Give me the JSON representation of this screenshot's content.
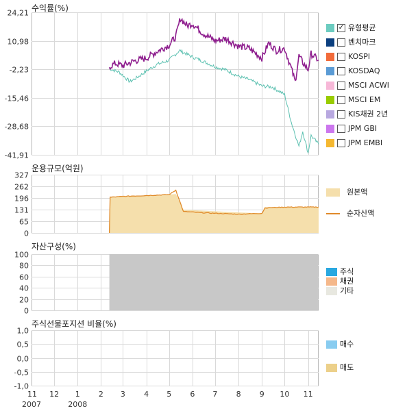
{
  "chart_data": [
    {
      "type": "line",
      "title": "수익률(%)",
      "yticks": [
        24.21,
        10.98,
        -2.23,
        -15.46,
        -28.68,
        -41.91
      ],
      "ytick_labels": [
        "24,21",
        "10,98",
        "-2,23",
        "-15,46",
        "-28,68",
        "-41,91"
      ],
      "ylim": [
        -41.91,
        24.21
      ],
      "x_start": "2007-11-01",
      "x_end": "2008-11-15",
      "series": [
        {
          "name": "유형평균",
          "color": "#8e1e8e",
          "points": [
            [
              "2008-02-12",
              -1.0
            ],
            [
              "2008-02-20",
              0.5
            ],
            [
              "2008-03-01",
              -0.5
            ],
            [
              "2008-03-15",
              1.5
            ],
            [
              "2008-04-01",
              3.0
            ],
            [
              "2008-04-15",
              6.0
            ],
            [
              "2008-05-01",
              9.0
            ],
            [
              "2008-05-10",
              13.0
            ],
            [
              "2008-05-16",
              21.5
            ],
            [
              "2008-05-25",
              18.0
            ],
            [
              "2008-06-01",
              19.0
            ],
            [
              "2008-06-15",
              14.5
            ],
            [
              "2008-07-01",
              11.0
            ],
            [
              "2008-07-15",
              12.0
            ],
            [
              "2008-08-01",
              8.5
            ],
            [
              "2008-08-15",
              7.5
            ],
            [
              "2008-09-01",
              3.0
            ],
            [
              "2008-09-10",
              10.0
            ],
            [
              "2008-09-20",
              6.5
            ],
            [
              "2008-10-01",
              7.5
            ],
            [
              "2008-10-10",
              -2.0
            ],
            [
              "2008-10-15",
              -8.0
            ],
            [
              "2008-10-20",
              4.0
            ],
            [
              "2008-10-25",
              1.0
            ],
            [
              "2008-11-01",
              -2.5
            ],
            [
              "2008-11-05",
              5.0
            ],
            [
              "2008-11-15",
              2.0
            ]
          ]
        },
        {
          "name": "벤치마크",
          "color": "#5bc0b0",
          "points": [
            [
              "2008-02-12",
              -2.0
            ],
            [
              "2008-02-25",
              -3.5
            ],
            [
              "2008-03-10",
              -8.0
            ],
            [
              "2008-03-20",
              -6.0
            ],
            [
              "2008-04-01",
              -3.0
            ],
            [
              "2008-04-15",
              0.0
            ],
            [
              "2008-05-01",
              2.0
            ],
            [
              "2008-05-15",
              6.5
            ],
            [
              "2008-06-01",
              3.5
            ],
            [
              "2008-06-15",
              1.5
            ],
            [
              "2008-07-01",
              -1.0
            ],
            [
              "2008-07-15",
              -2.5
            ],
            [
              "2008-08-01",
              -5.5
            ],
            [
              "2008-08-15",
              -7.0
            ],
            [
              "2008-09-01",
              -10.0
            ],
            [
              "2008-09-15",
              -10.5
            ],
            [
              "2008-10-01",
              -14.0
            ],
            [
              "2008-10-10",
              -27.0
            ],
            [
              "2008-10-20",
              -38.0
            ],
            [
              "2008-10-25",
              -31.0
            ],
            [
              "2008-11-01",
              -41.0
            ],
            [
              "2008-11-05",
              -33.0
            ],
            [
              "2008-11-15",
              -37.0
            ]
          ]
        }
      ]
    },
    {
      "type": "area",
      "title": "운용규모(억원)",
      "yticks": [
        327,
        262,
        196,
        131,
        65,
        0
      ],
      "ylim": [
        0,
        327
      ],
      "series": [
        {
          "name": "원본액",
          "type": "area",
          "color": "#f5dfac",
          "points": [
            [
              "2008-02-12",
              0
            ],
            [
              "2008-02-13",
              200
            ],
            [
              "2008-03-01",
              205
            ],
            [
              "2008-04-01",
              210
            ],
            [
              "2008-05-01",
              215
            ],
            [
              "2008-05-10",
              218
            ],
            [
              "2008-05-20",
              130
            ],
            [
              "2008-06-15",
              125
            ],
            [
              "2008-08-01",
              115
            ],
            [
              "2008-09-01",
              110
            ],
            [
              "2008-09-05",
              145
            ],
            [
              "2008-10-01",
              145
            ],
            [
              "2008-11-15",
              145
            ]
          ]
        },
        {
          "name": "순자산액",
          "type": "line",
          "color": "#e08a2a",
          "points": [
            [
              "2008-02-12",
              0
            ],
            [
              "2008-02-13",
              200
            ],
            [
              "2008-03-01",
              205
            ],
            [
              "2008-04-01",
              210
            ],
            [
              "2008-05-01",
              215
            ],
            [
              "2008-05-10",
              240
            ],
            [
              "2008-05-20",
              120
            ],
            [
              "2008-06-15",
              113
            ],
            [
              "2008-08-01",
              105
            ],
            [
              "2008-09-01",
              110
            ],
            [
              "2008-09-05",
              140
            ],
            [
              "2008-10-01",
              145
            ],
            [
              "2008-11-15",
              145
            ]
          ]
        }
      ]
    },
    {
      "type": "area",
      "title": "자산구성(%)",
      "yticks": [
        100,
        80,
        60,
        40,
        20,
        0
      ],
      "ylim": [
        0,
        100
      ],
      "series": [
        {
          "name": "주식",
          "color": "#29a8e0",
          "value": 0
        },
        {
          "name": "채권",
          "color": "#f5b88a",
          "value": 0
        },
        {
          "name": "기타",
          "color": "#c8c8c8",
          "value": 100,
          "from": "2008-02-12"
        }
      ]
    },
    {
      "type": "bar",
      "title": "주식선물포지션 비율(%)",
      "yticks": [
        1.0,
        0.5,
        0.0,
        -0.5,
        -1.0
      ],
      "ytick_labels": [
        "1,0",
        "0,5",
        "0,0",
        "-0,5",
        "-1,0"
      ],
      "ylim": [
        -1.0,
        1.0
      ],
      "series": [
        {
          "name": "매수",
          "color": "#88ccf0"
        },
        {
          "name": "매도",
          "color": "#ecd08a"
        }
      ]
    }
  ],
  "xaxis": {
    "ticks": [
      {
        "date": "2007-11-01",
        "label": "11"
      },
      {
        "date": "2007-12-01",
        "label": "12"
      },
      {
        "date": "2008-01-01",
        "label": "1"
      },
      {
        "date": "2008-02-01",
        "label": "2"
      },
      {
        "date": "2008-03-01",
        "label": "3"
      },
      {
        "date": "2008-04-01",
        "label": "4"
      },
      {
        "date": "2008-05-01",
        "label": "5"
      },
      {
        "date": "2008-06-01",
        "label": "6"
      },
      {
        "date": "2008-07-01",
        "label": "7"
      },
      {
        "date": "2008-08-01",
        "label": "8"
      },
      {
        "date": "2008-09-01",
        "label": "9"
      },
      {
        "date": "2008-10-01",
        "label": "10"
      },
      {
        "date": "2008-11-01",
        "label": "11"
      }
    ],
    "years": [
      {
        "date": "2007-11-01",
        "label": "2007"
      },
      {
        "date": "2008-01-01",
        "label": "2008"
      }
    ]
  },
  "legend1": [
    {
      "name": "유형평균",
      "color": "#6cccc0",
      "checked": true
    },
    {
      "name": "벤치마크",
      "color": "#0b3f7f",
      "checked": false
    },
    {
      "name": "KOSPI",
      "color": "#f26b3a",
      "checked": false
    },
    {
      "name": "KOSDAQ",
      "color": "#5a9bd5",
      "checked": false
    },
    {
      "name": "MSCI ACWI",
      "color": "#f7b8d8",
      "checked": false
    },
    {
      "name": "MSCI EM",
      "color": "#99cc00",
      "checked": false
    },
    {
      "name": "KIS채권 2년",
      "color": "#b8a8e0",
      "checked": false
    },
    {
      "name": "JPM GBI",
      "color": "#cc77ee",
      "checked": false
    },
    {
      "name": "JPM EMBI",
      "color": "#f5b830",
      "checked": false
    }
  ],
  "check_mark": "✓"
}
